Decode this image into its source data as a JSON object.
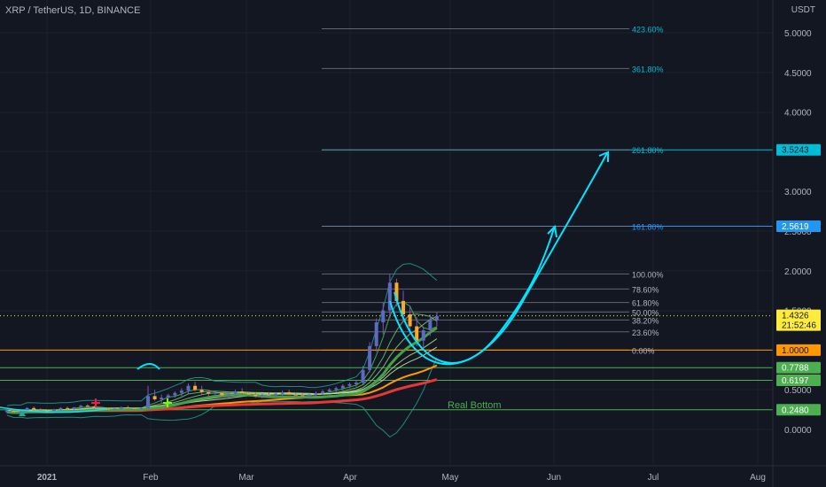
{
  "header": {
    "symbol": "XRP / TetherUS, 1D, BINANCE",
    "currency": "USDT"
  },
  "colors": {
    "background": "#131722",
    "grid": "#1e222d",
    "text": "#b2b5be",
    "fib": "#787b86",
    "cyan": "#00e5ff",
    "orange": "#ff9800",
    "green": "#4caf50",
    "red": "#e91e1e",
    "bollinger": "#26a69a",
    "price_label": "#ffeb3b",
    "blue_label": "#2196f3"
  },
  "chart_data": {
    "type": "candlestick",
    "title": "XRP / TetherUS, 1D, BINANCE",
    "ylabel": "USDT",
    "yticks": [
      "5.0000",
      "4.5000",
      "4.0000",
      "3.5000",
      "3.0000",
      "2.5000",
      "2.0000",
      "1.5000",
      "0.5000",
      "0.0000"
    ],
    "xticks": [
      "2021",
      "Feb",
      "Mar",
      "Apr",
      "May",
      "Jun",
      "Jul",
      "Aug"
    ],
    "ylim": [
      -0.25,
      5.3
    ],
    "price_badges": [
      {
        "value": "3.5243",
        "color": "#00bcd4",
        "text_color": "#131722"
      },
      {
        "value": "2.5619",
        "color": "#2196f3",
        "text_color": "#ffffff"
      },
      {
        "value": "1.4326",
        "sub": "21:52:46",
        "color": "#ffeb3b",
        "text_color": "#131722"
      },
      {
        "value": "1.0000",
        "color": "#ff9800",
        "text_color": "#131722"
      },
      {
        "value": "0.7788",
        "color": "#4caf50",
        "text_color": "#ffffff"
      },
      {
        "value": "0.6197",
        "color": "#4caf50",
        "text_color": "#ffffff"
      },
      {
        "value": "0.2480",
        "color": "#4caf50",
        "text_color": "#ffffff"
      }
    ],
    "fib_levels": [
      {
        "label": "423.60%",
        "price": 5.05
      },
      {
        "label": "361.80%",
        "price": 4.55
      },
      {
        "label": "261.80%",
        "price": 3.5243
      },
      {
        "label": "161.80%",
        "price": 2.5619
      },
      {
        "label": "100.00%",
        "price": 1.96
      },
      {
        "label": "78.60%",
        "price": 1.77
      },
      {
        "label": "61.80%",
        "price": 1.6
      },
      {
        "label": "50.00%",
        "price": 1.48
      },
      {
        "label": "38.20%",
        "price": 1.38
      },
      {
        "label": "23.60%",
        "price": 1.23
      },
      {
        "label": "0.00%",
        "price": 1.0
      }
    ],
    "horizontal_lines": [
      {
        "price": 1.0,
        "color": "#ff9800"
      },
      {
        "price": 0.7788,
        "color": "#4caf50"
      },
      {
        "price": 0.6197,
        "color": "#4caf50"
      },
      {
        "price": 0.248,
        "color": "#4caf50"
      }
    ],
    "annotations": [
      {
        "text": "Real Bottom",
        "color": "#4caf50"
      }
    ],
    "candles_ohlc": [
      [
        0.22,
        0.26,
        0.2,
        0.24
      ],
      [
        0.24,
        0.25,
        0.21,
        0.22
      ],
      [
        0.22,
        0.24,
        0.2,
        0.23
      ],
      [
        0.23,
        0.28,
        0.22,
        0.27
      ],
      [
        0.27,
        0.29,
        0.24,
        0.25
      ],
      [
        0.25,
        0.27,
        0.23,
        0.24
      ],
      [
        0.24,
        0.25,
        0.22,
        0.23
      ],
      [
        0.23,
        0.26,
        0.22,
        0.25
      ],
      [
        0.25,
        0.28,
        0.24,
        0.27
      ],
      [
        0.27,
        0.29,
        0.25,
        0.26
      ],
      [
        0.26,
        0.28,
        0.24,
        0.28
      ],
      [
        0.28,
        0.31,
        0.27,
        0.3
      ],
      [
        0.3,
        0.32,
        0.28,
        0.29
      ],
      [
        0.29,
        0.3,
        0.26,
        0.27
      ],
      [
        0.27,
        0.28,
        0.25,
        0.26
      ],
      [
        0.26,
        0.27,
        0.24,
        0.25
      ],
      [
        0.25,
        0.27,
        0.24,
        0.26
      ],
      [
        0.26,
        0.29,
        0.25,
        0.28
      ],
      [
        0.28,
        0.3,
        0.26,
        0.27
      ],
      [
        0.27,
        0.28,
        0.25,
        0.26
      ],
      [
        0.26,
        0.28,
        0.25,
        0.27
      ],
      [
        0.27,
        0.55,
        0.26,
        0.42
      ],
      [
        0.42,
        0.5,
        0.36,
        0.38
      ],
      [
        0.38,
        0.44,
        0.33,
        0.4
      ],
      [
        0.4,
        0.45,
        0.37,
        0.43
      ],
      [
        0.43,
        0.48,
        0.4,
        0.46
      ],
      [
        0.46,
        0.52,
        0.42,
        0.49
      ],
      [
        0.49,
        0.58,
        0.45,
        0.55
      ],
      [
        0.55,
        0.6,
        0.48,
        0.5
      ],
      [
        0.5,
        0.55,
        0.44,
        0.47
      ],
      [
        0.47,
        0.5,
        0.42,
        0.45
      ],
      [
        0.45,
        0.49,
        0.41,
        0.46
      ],
      [
        0.46,
        0.48,
        0.41,
        0.43
      ],
      [
        0.43,
        0.47,
        0.4,
        0.45
      ],
      [
        0.45,
        0.5,
        0.42,
        0.48
      ],
      [
        0.48,
        0.52,
        0.44,
        0.46
      ],
      [
        0.46,
        0.48,
        0.42,
        0.44
      ],
      [
        0.44,
        0.46,
        0.4,
        0.42
      ],
      [
        0.42,
        0.45,
        0.39,
        0.44
      ],
      [
        0.44,
        0.47,
        0.41,
        0.43
      ],
      [
        0.43,
        0.46,
        0.4,
        0.45
      ],
      [
        0.45,
        0.49,
        0.42,
        0.47
      ],
      [
        0.47,
        0.5,
        0.43,
        0.44
      ],
      [
        0.44,
        0.46,
        0.41,
        0.43
      ],
      [
        0.43,
        0.45,
        0.4,
        0.42
      ],
      [
        0.42,
        0.45,
        0.39,
        0.44
      ],
      [
        0.44,
        0.48,
        0.42,
        0.46
      ],
      [
        0.46,
        0.5,
        0.44,
        0.48
      ],
      [
        0.48,
        0.52,
        0.46,
        0.5
      ],
      [
        0.5,
        0.54,
        0.47,
        0.52
      ],
      [
        0.52,
        0.57,
        0.49,
        0.55
      ],
      [
        0.55,
        0.59,
        0.52,
        0.57
      ],
      [
        0.57,
        0.62,
        0.54,
        0.59
      ],
      [
        0.59,
        0.8,
        0.57,
        0.75
      ],
      [
        0.75,
        1.1,
        0.72,
        1.05
      ],
      [
        1.05,
        1.4,
        0.98,
        1.35
      ],
      [
        1.35,
        1.6,
        1.2,
        1.5
      ],
      [
        1.5,
        1.96,
        1.4,
        1.85
      ],
      [
        1.85,
        1.9,
        1.55,
        1.62
      ],
      [
        1.62,
        1.75,
        1.35,
        1.45
      ],
      [
        1.45,
        1.55,
        1.2,
        1.3
      ],
      [
        1.3,
        1.42,
        1.05,
        1.12
      ],
      [
        1.12,
        1.3,
        1.02,
        1.25
      ],
      [
        1.25,
        1.45,
        1.18,
        1.38
      ],
      [
        1.38,
        1.48,
        1.3,
        1.43
      ]
    ],
    "candle_x_range_days": [
      "2020-12-20",
      "2021-04-27"
    ],
    "projection": "curved arrows from ~1.0 bottom up to 2.5619 and 3.5243 targets"
  }
}
